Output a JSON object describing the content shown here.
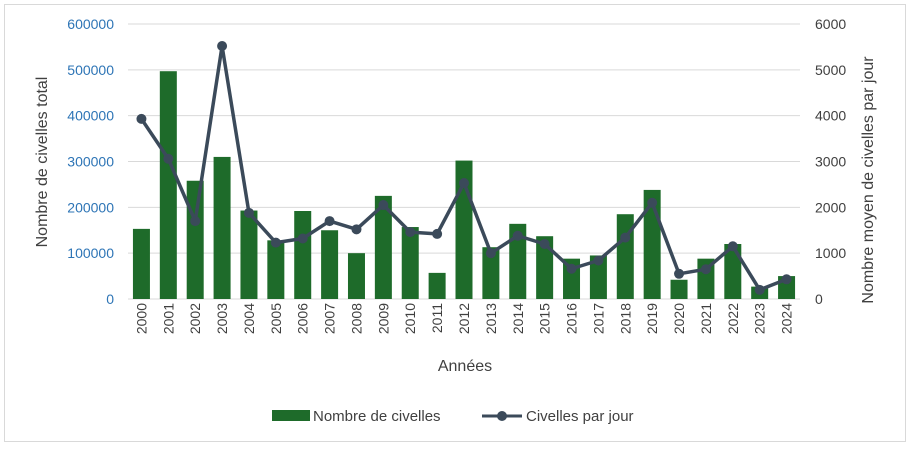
{
  "chart_data": {
    "type": "bar",
    "categories": [
      "2000",
      "2001",
      "2002",
      "2003",
      "2004",
      "2005",
      "2006",
      "2007",
      "2008",
      "2009",
      "2010",
      "2011",
      "2012",
      "2013",
      "2014",
      "2015",
      "2016",
      "2017",
      "2018",
      "2019",
      "2020",
      "2021",
      "2022",
      "2023",
      "2024"
    ],
    "series": [
      {
        "name": "Nombre de civelles",
        "type": "bar",
        "axis": "left",
        "color": "#1e6b2a",
        "values": [
          153000,
          497000,
          258000,
          310000,
          193000,
          128000,
          192000,
          150000,
          100000,
          225000,
          157000,
          57000,
          302000,
          113000,
          164000,
          137000,
          88000,
          95000,
          185000,
          238000,
          42000,
          88000,
          120000,
          27000,
          50000
        ]
      },
      {
        "name": "Civelles par jour",
        "type": "line",
        "axis": "right",
        "color": "#3b4a5a",
        "values": [
          3930,
          3060,
          1700,
          5520,
          1880,
          1230,
          1320,
          1700,
          1520,
          2050,
          1460,
          1420,
          2530,
          1000,
          1380,
          1200,
          660,
          840,
          1340,
          2100,
          550,
          650,
          1150,
          200,
          430
        ]
      }
    ],
    "xlabel": "Années",
    "ylabel": "Nombre de civelles total",
    "y2label": "Nombre moyen de civelles par jour",
    "ylim": [
      0,
      600000
    ],
    "y2lim": [
      0,
      6000
    ],
    "yticks": [
      "0",
      "100000",
      "200000",
      "300000",
      "400000",
      "500000",
      "600000"
    ],
    "y2ticks": [
      "0",
      "1000",
      "2000",
      "3000",
      "4000",
      "5000",
      "6000"
    ],
    "grid": true,
    "legend": "bottom"
  }
}
